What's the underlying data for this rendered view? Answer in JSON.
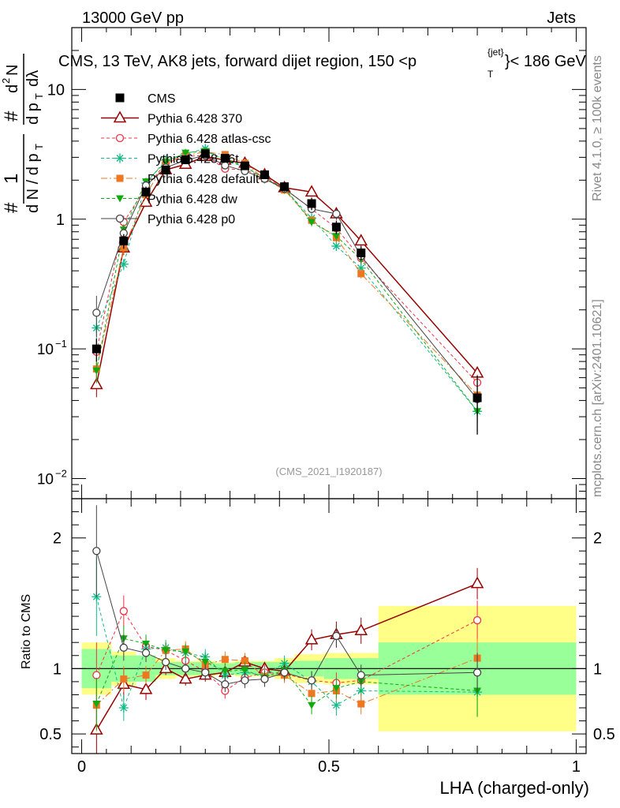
{
  "header": {
    "left": "13000 GeV pp",
    "right": "Jets"
  },
  "side": {
    "rivet": "Rivet 4.1.0, ≥ 100k events",
    "mcplots": "mcplots.cern.ch [arXiv:2401.10621]"
  },
  "chart_data": {
    "type": "line",
    "title_main": "CMS, 13 TeV, AK8 jets, forward dijet region, 150 <p",
    "title_sup": "{jet}",
    "title_sub": "T",
    "title_end": "}< 186 GeV",
    "watermark": "(CMS_2021_I1920187)",
    "xlabel": "LHA (charged-only)",
    "ylabel_top": "1/N dN/dp_T dλ",
    "ylabel_bottom": "Ratio to CMS",
    "xlim": [
      -0.02,
      1.02
    ],
    "ylim_top": [
      0.007,
      30
    ],
    "ylim_ratio": [
      0.35,
      2.3
    ],
    "x_ticks": [
      "0",
      "0.5",
      "1"
    ],
    "y_ticks_top": [
      {
        "v": 10,
        "base": "10",
        "exp": ""
      },
      {
        "v": 1,
        "base": "1",
        "exp": ""
      },
      {
        "v": 0.1,
        "base": "10",
        "exp": "−1"
      },
      {
        "v": 0.01,
        "base": "10",
        "exp": "−2"
      }
    ],
    "y_ticks_ratio": [
      "2",
      "1",
      "0.5"
    ],
    "x": [
      0.03,
      0.085,
      0.13,
      0.17,
      0.21,
      0.25,
      0.29,
      0.33,
      0.37,
      0.41,
      0.465,
      0.515,
      0.565,
      0.8
    ],
    "bin_edges": [
      0,
      0.06,
      0.11,
      0.15,
      0.19,
      0.23,
      0.27,
      0.31,
      0.35,
      0.39,
      0.43,
      0.49,
      0.54,
      0.6,
      1.0
    ],
    "data": {
      "name": "CMS",
      "values": [
        0.1,
        0.68,
        1.62,
        2.4,
        2.87,
        3.2,
        2.95,
        2.58,
        2.2,
        1.78,
        1.32,
        0.87,
        0.55,
        0.042
      ],
      "band_inner": [
        0.15,
        0.1,
        0.1,
        0.05,
        0.05,
        0.05,
        0.04,
        0.05,
        0.05,
        0.05,
        0.06,
        0.08,
        0.08,
        0.2
      ],
      "band_outer": [
        0.2,
        0.13,
        0.1,
        0.08,
        0.06,
        0.06,
        0.05,
        0.06,
        0.06,
        0.08,
        0.11,
        0.12,
        0.12,
        0.48
      ]
    },
    "series": [
      {
        "name": "Pythia 6.428 370",
        "color": "#990000",
        "marker": "tri-open",
        "dash": "",
        "lw": 1.5,
        "values": [
          0.053,
          0.6,
          1.35,
          2.4,
          2.65,
          3.05,
          2.85,
          2.7,
          2.2,
          1.75,
          1.62,
          1.1,
          0.68,
          0.065
        ],
        "ratio": [
          0.53,
          0.88,
          0.84,
          1.0,
          0.92,
          0.95,
          0.97,
          1.05,
          1.0,
          0.98,
          1.22,
          1.26,
          1.29,
          1.65
        ],
        "rerr": [
          0.2,
          0.12,
          0.08,
          0.05,
          0.05,
          0.05,
          0.05,
          0.05,
          0.05,
          0.05,
          0.08,
          0.1,
          0.1,
          0.12
        ]
      },
      {
        "name": "Pythia 6.428 atlas-csc",
        "color": "#ee3344",
        "marker": "circ-open",
        "dash": "4,3",
        "lw": 1,
        "values": [
          0.095,
          0.95,
          1.75,
          2.7,
          3.05,
          3.1,
          2.45,
          2.4,
          2.12,
          1.72,
          1.2,
          0.85,
          0.5,
          0.055
        ],
        "ratio": [
          0.95,
          1.44,
          1.17,
          1.14,
          1.06,
          0.98,
          0.83,
          0.93,
          0.97,
          0.96,
          0.91,
          0.89,
          0.91,
          1.37
        ],
        "rerr": [
          0.25,
          0.12,
          0.07,
          0.06,
          0.06,
          0.06,
          0.06,
          0.06,
          0.06,
          0.06,
          0.07,
          0.08,
          0.08,
          0.15
        ]
      },
      {
        "name": "Pythia 6.428 d6t",
        "color": "#11bb88",
        "marker": "star",
        "dash": "4,3",
        "lw": 1,
        "values": [
          0.145,
          0.45,
          1.9,
          2.85,
          3.2,
          3.5,
          2.8,
          2.55,
          2.05,
          1.7,
          1.02,
          0.62,
          0.42,
          0.033
        ],
        "ratio": [
          1.55,
          0.7,
          1.15,
          1.16,
          1.12,
          1.09,
          0.95,
          0.97,
          0.95,
          1.04,
          0.9,
          0.72,
          0.83,
          0.82
        ],
        "rerr": [
          0.3,
          0.1,
          0.07,
          0.06,
          0.06,
          0.06,
          0.06,
          0.06,
          0.06,
          0.06,
          0.08,
          0.08,
          0.09,
          0.18
        ]
      },
      {
        "name": "Pythia 6.428 default",
        "color": "#ee7722",
        "marker": "sq",
        "dash": "8,3,2,3",
        "lw": 1,
        "values": [
          0.07,
          0.6,
          1.55,
          2.75,
          3.1,
          3.3,
          3.15,
          2.7,
          2.05,
          1.68,
          0.98,
          0.72,
          0.38,
          0.044
        ],
        "ratio": [
          0.72,
          0.92,
          0.95,
          1.14,
          1.15,
          1.03,
          1.07,
          1.06,
          0.94,
          0.95,
          0.81,
          0.83,
          0.73,
          1.08
        ],
        "rerr": [
          0.2,
          0.1,
          0.07,
          0.06,
          0.06,
          0.06,
          0.06,
          0.06,
          0.06,
          0.06,
          0.07,
          0.08,
          0.08,
          0.15
        ]
      },
      {
        "name": "Pythia 6.428 dw",
        "color": "#11aa11",
        "marker": "tri-down",
        "dash": "4,3",
        "lw": 1,
        "values": [
          0.068,
          0.83,
          1.95,
          2.75,
          3.25,
          3.35,
          2.9,
          2.55,
          2.05,
          1.75,
          0.95,
          0.74,
          0.49,
          0.033
        ],
        "ratio": [
          0.73,
          1.23,
          1.19,
          1.14,
          1.13,
          1.05,
          0.98,
          0.99,
          0.93,
          0.99,
          0.72,
          0.85,
          0.9,
          0.83
        ],
        "rerr": [
          0.2,
          0.1,
          0.07,
          0.06,
          0.06,
          0.06,
          0.06,
          0.06,
          0.06,
          0.06,
          0.07,
          0.08,
          0.08,
          0.2
        ]
      },
      {
        "name": "Pythia 6.428 p0",
        "color": "#444444",
        "marker": "circ-open",
        "dash": "",
        "lw": 1,
        "values": [
          0.19,
          0.78,
          1.82,
          2.5,
          2.85,
          3.1,
          2.6,
          2.35,
          2.05,
          1.72,
          1.2,
          1.1,
          0.52,
          0.041
        ],
        "ratio": [
          1.9,
          1.16,
          1.12,
          1.05,
          1.0,
          0.97,
          0.88,
          0.91,
          0.92,
          0.97,
          0.91,
          1.25,
          0.95,
          0.97
        ],
        "rerr": [
          0.35,
          0.1,
          0.07,
          0.06,
          0.06,
          0.06,
          0.06,
          0.06,
          0.06,
          0.06,
          0.07,
          0.08,
          0.08,
          0.15
        ]
      }
    ]
  }
}
